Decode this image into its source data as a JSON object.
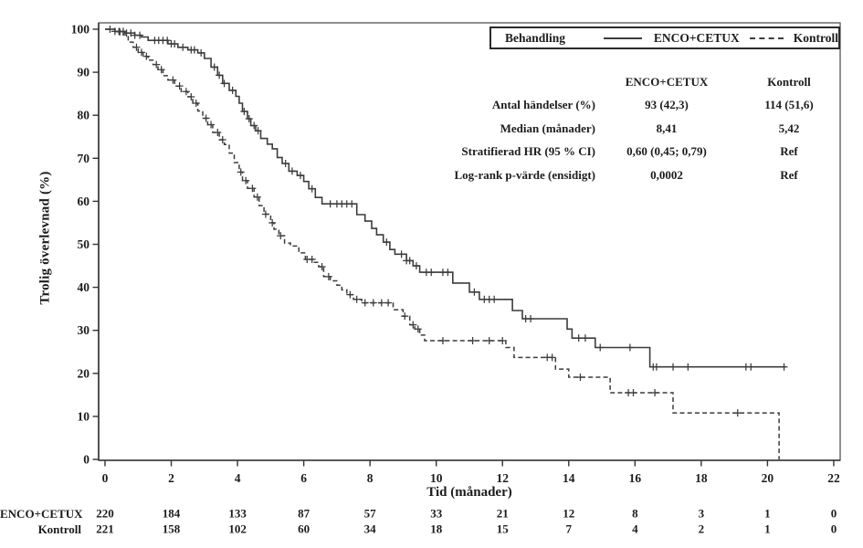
{
  "figure": {
    "background": "#ffffff",
    "line_color": "#3c3c3c",
    "frame_color": "#555555",
    "text_color": "#1c1c1c"
  },
  "chart_data": {
    "type": "line",
    "subtype": "kaplan-meier-step",
    "title": "",
    "xlabel": "Tid (månader)",
    "ylabel": "Trolig överlevnad (%)",
    "xlim": [
      0,
      22
    ],
    "ylim": [
      0,
      100
    ],
    "xticks": [
      0,
      2,
      4,
      6,
      8,
      10,
      12,
      14,
      16,
      18,
      20,
      22
    ],
    "yticks": [
      0,
      10,
      20,
      30,
      40,
      50,
      60,
      70,
      80,
      90,
      100
    ],
    "grid": false,
    "legend_position": "top-right",
    "legend": {
      "title": "Behandling",
      "entries": [
        {
          "label": "ENCO+CETUX",
          "style": "solid"
        },
        {
          "label": "Kontroll",
          "style": "dashed"
        }
      ]
    },
    "series": [
      {
        "name": "ENCO+CETUX",
        "style": "solid",
        "points": [
          [
            0,
            100
          ],
          [
            0.3,
            99.5
          ],
          [
            0.6,
            99.1
          ],
          [
            0.9,
            98.6
          ],
          [
            1.1,
            98.2
          ],
          [
            1.3,
            97.4
          ],
          [
            1.9,
            96.6
          ],
          [
            2.2,
            95.8
          ],
          [
            2.5,
            95.2
          ],
          [
            2.8,
            94.5
          ],
          [
            3.0,
            93.2
          ],
          [
            3.2,
            91.2
          ],
          [
            3.4,
            89.3
          ],
          [
            3.55,
            87.4
          ],
          [
            3.75,
            85.8
          ],
          [
            3.95,
            84.4
          ],
          [
            4.05,
            82.8
          ],
          [
            4.15,
            80.9
          ],
          [
            4.3,
            79.2
          ],
          [
            4.4,
            77.6
          ],
          [
            4.55,
            76.4
          ],
          [
            4.7,
            74.6
          ],
          [
            4.9,
            73.3
          ],
          [
            5.05,
            72.2
          ],
          [
            5.2,
            70.2
          ],
          [
            5.35,
            68.8
          ],
          [
            5.55,
            67.0
          ],
          [
            5.8,
            66.0
          ],
          [
            6.0,
            64.6
          ],
          [
            6.15,
            62.9
          ],
          [
            6.35,
            60.9
          ],
          [
            6.55,
            59.4
          ],
          [
            7.6,
            56.9
          ],
          [
            7.85,
            55.4
          ],
          [
            8.05,
            53.7
          ],
          [
            8.2,
            52.2
          ],
          [
            8.4,
            50.5
          ],
          [
            8.6,
            48.8
          ],
          [
            8.75,
            47.7
          ],
          [
            9.1,
            46.2
          ],
          [
            9.3,
            45.0
          ],
          [
            9.5,
            43.5
          ],
          [
            10.5,
            41.0
          ],
          [
            11.0,
            38.9
          ],
          [
            11.3,
            37.2
          ],
          [
            12.3,
            34.6
          ],
          [
            12.6,
            32.7
          ],
          [
            13.95,
            30.3
          ],
          [
            14.1,
            28.2
          ],
          [
            14.8,
            26.0
          ],
          [
            16.45,
            21.5
          ],
          [
            20.55,
            21.5
          ]
        ],
        "censor_times": [
          0.15,
          0.3,
          0.42,
          0.55,
          0.65,
          0.78,
          0.9,
          1.05,
          1.5,
          1.62,
          1.75,
          1.88,
          2.0,
          2.1,
          2.35,
          2.6,
          2.7,
          2.9,
          3.3,
          3.45,
          3.6,
          3.85,
          4.2,
          4.35,
          4.5,
          4.62,
          5.45,
          5.65,
          5.9,
          6.25,
          6.8,
          7.0,
          7.15,
          7.3,
          7.45,
          8.5,
          8.95,
          9.1,
          9.2,
          9.4,
          9.7,
          9.85,
          10.2,
          10.35,
          11.15,
          11.45,
          11.6,
          11.75,
          12.7,
          12.85,
          14.3,
          14.5,
          14.95,
          15.85,
          16.55,
          16.65,
          17.15,
          17.6,
          19.35,
          19.5,
          20.5
        ]
      },
      {
        "name": "Kontroll",
        "style": "dashed",
        "points": [
          [
            0,
            100
          ],
          [
            0.3,
            99.4
          ],
          [
            0.55,
            98.7
          ],
          [
            0.7,
            97.0
          ],
          [
            0.85,
            95.8
          ],
          [
            1.0,
            94.6
          ],
          [
            1.15,
            93.7
          ],
          [
            1.3,
            92.8
          ],
          [
            1.45,
            91.8
          ],
          [
            1.6,
            90.6
          ],
          [
            1.75,
            89.2
          ],
          [
            1.9,
            88.2
          ],
          [
            2.1,
            86.8
          ],
          [
            2.3,
            85.5
          ],
          [
            2.5,
            84.3
          ],
          [
            2.65,
            82.8
          ],
          [
            2.8,
            81.0
          ],
          [
            2.95,
            79.3
          ],
          [
            3.1,
            77.8
          ],
          [
            3.25,
            76.0
          ],
          [
            3.45,
            74.3
          ],
          [
            3.6,
            73.2
          ],
          [
            3.75,
            71.2
          ],
          [
            3.9,
            69.0
          ],
          [
            4.05,
            66.8
          ],
          [
            4.15,
            64.8
          ],
          [
            4.3,
            63.0
          ],
          [
            4.5,
            61.0
          ],
          [
            4.65,
            59.0
          ],
          [
            4.8,
            57.0
          ],
          [
            5.0,
            55.0
          ],
          [
            5.1,
            53.5
          ],
          [
            5.25,
            52.0
          ],
          [
            5.42,
            50.3
          ],
          [
            5.6,
            49.6
          ],
          [
            5.85,
            48.0
          ],
          [
            6.05,
            46.5
          ],
          [
            6.3,
            45.8
          ],
          [
            6.45,
            44.8
          ],
          [
            6.6,
            42.5
          ],
          [
            6.8,
            41.5
          ],
          [
            7.0,
            40.5
          ],
          [
            7.15,
            39.4
          ],
          [
            7.3,
            38.3
          ],
          [
            7.5,
            37.2
          ],
          [
            7.75,
            36.4
          ],
          [
            8.7,
            34.8
          ],
          [
            9.0,
            33.3
          ],
          [
            9.2,
            31.3
          ],
          [
            9.35,
            30.3
          ],
          [
            9.5,
            28.9
          ],
          [
            9.65,
            27.6
          ],
          [
            12.1,
            26.0
          ],
          [
            12.35,
            23.7
          ],
          [
            13.6,
            21.0
          ],
          [
            14.0,
            19.1
          ],
          [
            15.25,
            15.5
          ],
          [
            17.15,
            10.8
          ],
          [
            20.35,
            0
          ]
        ],
        "censor_times": [
          0.45,
          0.95,
          1.1,
          1.25,
          1.55,
          1.7,
          2.05,
          2.25,
          2.45,
          2.6,
          2.75,
          3.05,
          3.2,
          3.4,
          3.55,
          4.1,
          4.25,
          4.45,
          4.6,
          4.85,
          5.05,
          5.3,
          6.1,
          6.25,
          6.55,
          6.75,
          7.4,
          7.6,
          7.85,
          8.1,
          8.35,
          8.55,
          9.05,
          9.3,
          9.45,
          10.2,
          11.1,
          11.6,
          12.0,
          13.35,
          13.5,
          14.35,
          15.8,
          15.95,
          16.6,
          19.1
        ]
      }
    ]
  },
  "stats_table": {
    "col_headers": [
      "ENCO+CETUX",
      "Kontroll"
    ],
    "rows": [
      {
        "label": "Antal händelser (%)",
        "enco": "93 (42,3)",
        "kontroll": "114 (51,6)"
      },
      {
        "label": "Median (månader)",
        "enco": "8,41",
        "kontroll": "5,42"
      },
      {
        "label": "Stratifierad HR (95 % CI)",
        "enco": "0,60 (0,45; 0,79)",
        "kontroll": "Ref"
      },
      {
        "label": "Log-rank p-värde (ensidigt)",
        "enco": "0,0002",
        "kontroll": "Ref"
      }
    ]
  },
  "risk_table": {
    "rows": [
      {
        "label": "ENCO+CETUX",
        "counts": [
          "220",
          "184",
          "133",
          "87",
          "57",
          "33",
          "21",
          "12",
          "8",
          "3",
          "1",
          "0"
        ]
      },
      {
        "label": "Kontroll",
        "counts": [
          "221",
          "158",
          "102",
          "60",
          "34",
          "18",
          "15",
          "7",
          "4",
          "2",
          "1",
          "0"
        ]
      }
    ]
  }
}
